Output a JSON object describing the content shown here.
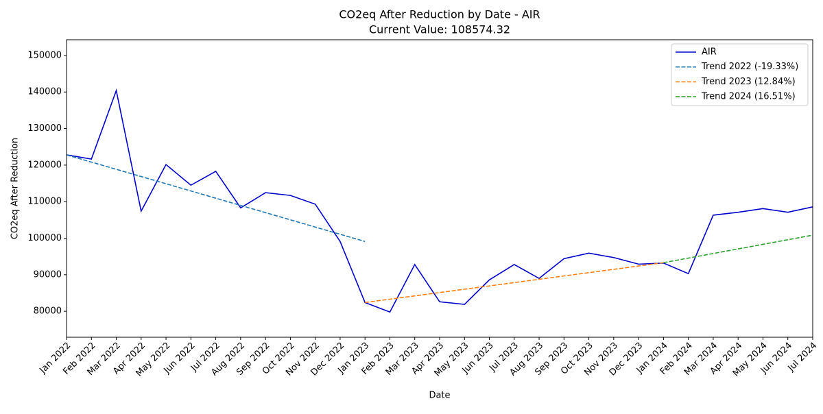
{
  "chart_data": {
    "type": "line",
    "title": "CO2eq After Reduction by Date - AIR",
    "subtitle": "Current Value: 108574.32",
    "x_label": "Date",
    "y_label": "CO2eq After Reduction",
    "categories": [
      "Jan 2022",
      "Feb 2022",
      "Mar 2022",
      "Apr 2022",
      "May 2022",
      "Jun 2022",
      "Jul 2022",
      "Aug 2022",
      "Sep 2022",
      "Oct 2022",
      "Nov 2022",
      "Dec 2022",
      "Jan 2023",
      "Feb 2023",
      "Mar 2023",
      "Apr 2023",
      "May 2023",
      "Jun 2023",
      "Jul 2023",
      "Aug 2023",
      "Sep 2023",
      "Oct 2023",
      "Nov 2023",
      "Dec 2023",
      "Jan 2024",
      "Feb 2024",
      "Mar 2024",
      "Apr 2024",
      "May 2024",
      "Jun 2024",
      "Jul 2024"
    ],
    "series": [
      {
        "name": "AIR",
        "color": "#0000cd",
        "dash": false,
        "values": [
          122800,
          121650,
          140400,
          107400,
          120150,
          114500,
          118300,
          108300,
          112450,
          111700,
          109300,
          99100,
          82400,
          79800,
          92800,
          82600,
          81900,
          88600,
          92800,
          89000,
          94400,
          95900,
          94700,
          92900,
          93200,
          90300,
          106300,
          107100,
          108100,
          107100,
          108574.32
        ]
      },
      {
        "name": "Trend 2022 (-19.33%)",
        "color": "#1f77b4",
        "dash": true,
        "values": [
          122800,
          120825,
          118850,
          116875,
          114900,
          112925,
          110950,
          108975,
          107000,
          105025,
          103050,
          101075,
          99100,
          null,
          null,
          null,
          null,
          null,
          null,
          null,
          null,
          null,
          null,
          null,
          null,
          null,
          null,
          null,
          null,
          null,
          null
        ]
      },
      {
        "name": "Trend 2023 (12.84%)",
        "color": "#ff7f0e",
        "dash": true,
        "values": [
          null,
          null,
          null,
          null,
          null,
          null,
          null,
          null,
          null,
          null,
          null,
          null,
          82400,
          83308,
          84216,
          85124,
          86032,
          86940,
          87848,
          88756,
          89664,
          90572,
          91480,
          92388,
          93296,
          null,
          null,
          null,
          null,
          null,
          null
        ]
      },
      {
        "name": "Trend 2024 (16.51%)",
        "color": "#2ca02c",
        "dash": true,
        "values": [
          null,
          null,
          null,
          null,
          null,
          null,
          null,
          null,
          null,
          null,
          null,
          null,
          null,
          null,
          null,
          null,
          null,
          null,
          null,
          null,
          null,
          null,
          null,
          null,
          93300,
          94555,
          95810,
          97065,
          98320,
          99575,
          100830
        ]
      }
    ],
    "ylim": [
      72900,
      154300
    ],
    "yticks": [
      80000,
      90000,
      100000,
      110000,
      120000,
      130000,
      140000,
      150000
    ],
    "grid": false,
    "legend": "upper right"
  }
}
